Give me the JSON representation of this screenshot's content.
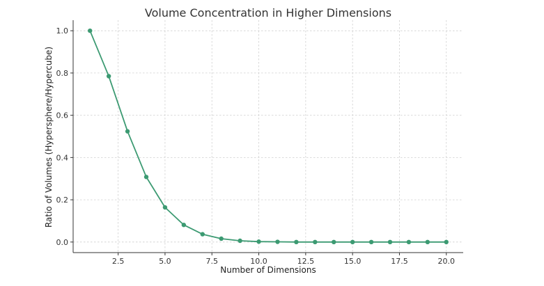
{
  "colors": {
    "series": "#3c9a72",
    "axis": "#333333",
    "grid": "#cfcfcf"
  },
  "chart_data": {
    "type": "line",
    "title": "Volume Concentration in Higher Dimensions",
    "xlabel": "Number of Dimensions",
    "ylabel": "Ratio of Volumes (Hypersphere/Hypercube)",
    "xlim": [
      0.1,
      20.9
    ],
    "ylim": [
      -0.05,
      1.05
    ],
    "x_ticks": [
      2.5,
      5.0,
      7.5,
      10.0,
      12.5,
      15.0,
      17.5,
      20.0
    ],
    "x_tick_labels": [
      "2.5",
      "5.0",
      "7.5",
      "10.0",
      "12.5",
      "15.0",
      "17.5",
      "20.0"
    ],
    "y_ticks": [
      0.0,
      0.2,
      0.4,
      0.6,
      0.8,
      1.0
    ],
    "y_tick_labels": [
      "0.0",
      "0.2",
      "0.4",
      "0.6",
      "0.8",
      "1.0"
    ],
    "grid": true,
    "legend": "none",
    "series": [
      {
        "marker": "circle",
        "x": [
          1,
          2,
          3,
          4,
          5,
          6,
          7,
          8,
          9,
          10,
          11,
          12,
          13,
          14,
          15,
          16,
          17,
          18,
          19,
          20
        ],
        "y": [
          1.0,
          0.785,
          0.524,
          0.308,
          0.164,
          0.081,
          0.037,
          0.016,
          0.006,
          0.002,
          0.001,
          0.0,
          0.0,
          0.0,
          0.0,
          0.0,
          0.0,
          0.0,
          0.0,
          0.0
        ]
      }
    ]
  }
}
